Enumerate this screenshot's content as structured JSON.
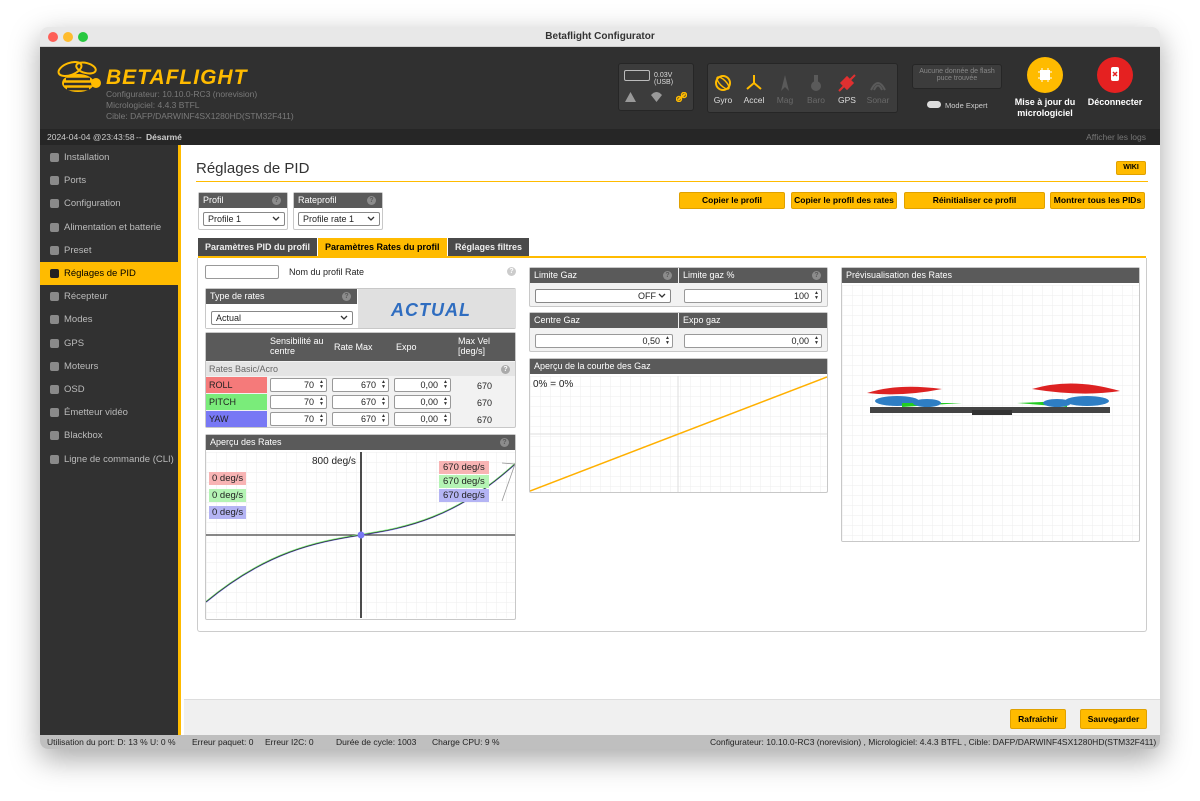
{
  "window": {
    "title": "Betaflight Configurator"
  },
  "header": {
    "brand": "BETAFLIGHT",
    "configurator": "Configurateur: 10.10.0-RC3 (norevision)",
    "firmware": "Micrologiciel: 4.4.3 BTFL",
    "target": "Cible: DAFP/DARWINF4SX1280HD(STM32F411)",
    "battery": "0.03V (USB)",
    "flash": "Aucune donnée de flash puce trouvée",
    "expert_mode": "Mode Expert",
    "update_btn": "Mise à jour du micrologiciel",
    "disconnect_btn": "Déconnecter"
  },
  "sensors": [
    {
      "name": "Gyro",
      "active": true
    },
    {
      "name": "Accel",
      "active": true
    },
    {
      "name": "Mag",
      "active": false
    },
    {
      "name": "Baro",
      "active": false
    },
    {
      "name": "GPS",
      "active": true
    },
    {
      "name": "Sonar",
      "active": false
    }
  ],
  "status_row": {
    "datetime": "2024-04-04 @23:43:58",
    "separator": " -- ",
    "state": "Désarmé",
    "show_logs": "Afficher les logs"
  },
  "sidebar": {
    "items": [
      {
        "label": "Installation",
        "icon": "wrench-icon"
      },
      {
        "label": "Ports",
        "icon": "plug-icon"
      },
      {
        "label": "Configuration",
        "icon": "gear-icon"
      },
      {
        "label": "Alimentation et batterie",
        "icon": "battery-icon"
      },
      {
        "label": "Preset",
        "icon": "preset-icon"
      },
      {
        "label": "Réglages de PID",
        "icon": "pid-icon",
        "active": true
      },
      {
        "label": "Récepteur",
        "icon": "receiver-icon"
      },
      {
        "label": "Modes",
        "icon": "modes-icon"
      },
      {
        "label": "GPS",
        "icon": "gps-icon"
      },
      {
        "label": "Moteurs",
        "icon": "motor-icon"
      },
      {
        "label": "OSD",
        "icon": "osd-icon"
      },
      {
        "label": "Émetteur vidéo",
        "icon": "vtx-icon"
      },
      {
        "label": "Blackbox",
        "icon": "blackbox-icon"
      },
      {
        "label": "Ligne de commande (CLI)",
        "icon": "cli-icon"
      }
    ]
  },
  "page": {
    "title": "Réglages de PID",
    "wiki": "WIKI"
  },
  "profile": {
    "label": "Profil",
    "value": "Profile 1"
  },
  "rateprofile": {
    "label": "Rateprofil",
    "value": "Profile rate 1"
  },
  "actions": {
    "copy_profile": "Copier le profil",
    "copy_rates": "Copier le profil des rates",
    "reset_profile": "Réinitialiser ce profil",
    "show_all": "Montrer tous les PIDs"
  },
  "tabs": {
    "pid": "Paramètres PID du profil",
    "rates": "Paramètres Rates du profil",
    "filters": "Réglages filtres"
  },
  "rate_profile_name": {
    "value": "",
    "label": "Nom du profil Rate"
  },
  "rates_type": {
    "label": "Type de rates",
    "value": "Actual",
    "logo": "ACTUAL"
  },
  "rates_table": {
    "headers": [
      "",
      "Sensibilité au centre",
      "Rate Max",
      "Expo",
      "Max Vel [deg/s]"
    ],
    "section": "Rates Basic/Acro",
    "rows": [
      {
        "axis": "ROLL",
        "color": "#f57a7a",
        "center": "70",
        "max": "670",
        "expo": "0,00",
        "vel": "670"
      },
      {
        "axis": "PITCH",
        "color": "#7aec7a",
        "center": "70",
        "max": "670",
        "expo": "0,00",
        "vel": "670"
      },
      {
        "axis": "YAW",
        "color": "#7878f5",
        "center": "70",
        "max": "670",
        "expo": "0,00",
        "vel": "670"
      }
    ]
  },
  "rates_preview": {
    "title": "Aperçu des Rates",
    "max_label": "800 deg/s",
    "left_labels": [
      "0 deg/s",
      "0 deg/s",
      "0 deg/s"
    ],
    "right_labels": [
      "670 deg/s",
      "670 deg/s",
      "670 deg/s"
    ]
  },
  "throttle": {
    "limit_label": "Limite Gaz",
    "limit_value": "OFF",
    "limit_pct_label": "Limite gaz %",
    "limit_pct_value": "100",
    "mid_label": "Centre Gaz",
    "mid_value": "0,50",
    "expo_label": "Expo gaz",
    "expo_value": "0,00",
    "curve_title": "Aperçu de la courbe des Gaz",
    "curve_label": "0% = 0%"
  },
  "rates_3d": {
    "title": "Prévisualisation des Rates"
  },
  "footer": {
    "refresh": "Rafraîchir",
    "save": "Sauvegarder"
  },
  "statusbar": {
    "port": "Utilisation du port: D: 13 % U: 0 %",
    "packet": "Erreur paquet: 0",
    "i2c": "Erreur I2C: 0",
    "cycle": "Durée de cycle: 1003",
    "cpu": "Charge CPU: 9 %",
    "version": "Configurateur: 10.10.0-RC3 (norevision) , Micrologiciel: 4.4.3 BTFL , Cible: DAFP/DARWINF4SX1280HD(STM32F411)"
  },
  "colors": {
    "accent": "#ffbb00",
    "roll": "#f57a7a",
    "pitch": "#7aec7a",
    "yaw": "#7878f5"
  }
}
